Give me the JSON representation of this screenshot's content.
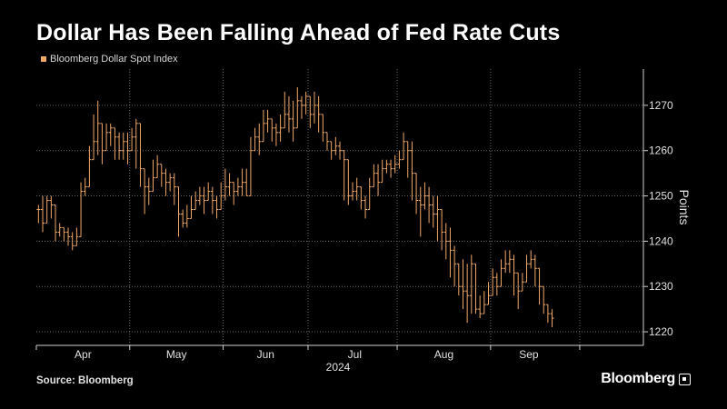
{
  "header": {
    "title": "Dollar Has Been Falling Ahead of Fed Rate Cuts"
  },
  "footer": {
    "source": "Source: Bloomberg",
    "brand": "Bloomberg"
  },
  "colors": {
    "series": "#f0a868",
    "grid": "#6a6a6a",
    "axis": "#cfcfcf",
    "background": "#000000"
  },
  "chart_data": {
    "type": "ohlc",
    "title": "Dollar Has Been Falling Ahead of Fed Rate Cuts",
    "legend": [
      "Bloomberg Dollar Spot Index"
    ],
    "legend_position": "top-left",
    "ylabel": "Points",
    "y_axis_side": "right",
    "ylim": [
      1217,
      1278
    ],
    "yticks": [
      1220,
      1230,
      1240,
      1250,
      1260,
      1270
    ],
    "xlim": [
      0,
      143
    ],
    "x_year_label": "2024",
    "x_month_labels": [
      {
        "label": "Apr",
        "at": 11
      },
      {
        "label": "May",
        "at": 33
      },
      {
        "label": "Jun",
        "at": 54
      },
      {
        "label": "Jul",
        "at": 75
      },
      {
        "label": "Aug",
        "at": 96
      },
      {
        "label": "Sep",
        "at": 116
      }
    ],
    "x_month_boundaries": [
      0,
      22,
      44,
      64,
      85,
      107,
      128
    ],
    "series": [
      {
        "name": "Bloomberg Dollar Spot Index",
        "values": [
          1247,
          1244,
          1249,
          1248,
          1242,
          1243,
          1242,
          1241,
          1239,
          1241,
          1251,
          1252,
          1258,
          1262,
          1266,
          1260,
          1264,
          1265,
          1263,
          1260,
          1262,
          1260,
          1263,
          1266,
          1256,
          1252,
          1251,
          1254,
          1257,
          1255,
          1253,
          1254,
          1252,
          1246,
          1244,
          1245,
          1247,
          1249,
          1250,
          1249,
          1251,
          1249,
          1247,
          1250,
          1252,
          1253,
          1251,
          1252,
          1253,
          1250,
          1260,
          1263,
          1262,
          1266,
          1267,
          1265,
          1264,
          1265,
          1268,
          1267,
          1265,
          1271,
          1270,
          1272,
          1268,
          1270,
          1268,
          1264,
          1262,
          1260,
          1261,
          1260,
          1258,
          1250,
          1251,
          1252,
          1249,
          1247,
          1252,
          1255,
          1253,
          1256,
          1257,
          1256,
          1257,
          1258,
          1262,
          1260,
          1255,
          1249,
          1248,
          1250,
          1248,
          1246,
          1247,
          1242,
          1240,
          1238,
          1235,
          1230,
          1229,
          1228,
          1235,
          1225,
          1224,
          1226,
          1228,
          1232,
          1230,
          1234,
          1235,
          1236,
          1233,
          1229,
          1231,
          1235,
          1236,
          1234,
          1230,
          1226,
          1224,
          1223
        ],
        "lows": [
          1244,
          1242,
          1246,
          1245,
          1240,
          1241,
          1240,
          1239,
          1238,
          1239,
          1248,
          1250,
          1255,
          1258,
          1259,
          1257,
          1260,
          1261,
          1258,
          1258,
          1258,
          1257,
          1260,
          1256,
          1252,
          1246,
          1248,
          1251,
          1255,
          1252,
          1250,
          1251,
          1248,
          1241,
          1243,
          1243,
          1245,
          1247,
          1248,
          1246,
          1249,
          1246,
          1245,
          1248,
          1249,
          1250,
          1248,
          1250,
          1250,
          1250,
          1257,
          1260,
          1259,
          1263,
          1264,
          1262,
          1261,
          1262,
          1265,
          1264,
          1262,
          1268,
          1267,
          1268,
          1265,
          1266,
          1264,
          1262,
          1260,
          1258,
          1259,
          1258,
          1249,
          1248,
          1249,
          1249,
          1247,
          1245,
          1250,
          1252,
          1250,
          1253,
          1255,
          1254,
          1255,
          1256,
          1258,
          1254,
          1249,
          1246,
          1241,
          1247,
          1244,
          1243,
          1240,
          1238,
          1236,
          1232,
          1230,
          1228,
          1225,
          1222,
          1224,
          1224,
          1223,
          1224,
          1226,
          1228,
          1228,
          1232,
          1233,
          1233,
          1228,
          1225,
          1230,
          1233,
          1234,
          1230,
          1226,
          1224,
          1222,
          1221
        ],
        "highs": [
          1248,
          1250,
          1250,
          1250,
          1245,
          1244,
          1243,
          1243,
          1242,
          1243,
          1253,
          1254,
          1261,
          1268,
          1271,
          1266,
          1266,
          1266,
          1265,
          1264,
          1264,
          1264,
          1265,
          1267,
          1258,
          1254,
          1254,
          1258,
          1259,
          1257,
          1256,
          1255,
          1255,
          1248,
          1247,
          1248,
          1250,
          1251,
          1252,
          1252,
          1253,
          1252,
          1250,
          1253,
          1256,
          1255,
          1253,
          1254,
          1256,
          1256,
          1263,
          1265,
          1266,
          1269,
          1269,
          1267,
          1266,
          1268,
          1273,
          1272,
          1271,
          1274,
          1272,
          1273,
          1272,
          1273,
          1272,
          1268,
          1264,
          1262,
          1263,
          1262,
          1260,
          1254,
          1253,
          1254,
          1252,
          1250,
          1254,
          1257,
          1257,
          1258,
          1258,
          1258,
          1259,
          1260,
          1264,
          1262,
          1262,
          1253,
          1252,
          1253,
          1252,
          1250,
          1250,
          1246,
          1244,
          1243,
          1239,
          1232,
          1236,
          1235,
          1237,
          1230,
          1228,
          1229,
          1231,
          1234,
          1233,
          1236,
          1238,
          1238,
          1237,
          1233,
          1233,
          1237,
          1238,
          1237,
          1233,
          1230,
          1226,
          1225
        ]
      }
    ]
  }
}
